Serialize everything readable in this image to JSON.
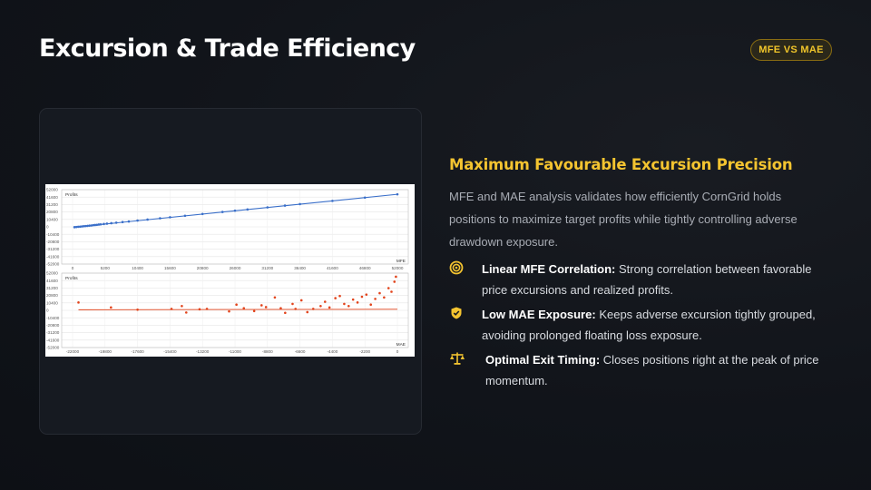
{
  "slide": {
    "title": "Excursion & Trade Efficiency",
    "badge": "MFE VS MAE"
  },
  "content": {
    "subtitle": "Maximum Favourable Excursion Precision",
    "description": "MFE and MAE analysis validates how efficiently CornGrid holds positions to maximize target profits while tightly controlling adverse drawdown exposure.",
    "bullets": [
      {
        "icon": "target-icon",
        "title": "Linear MFE Correlation:",
        "text": "Strong correlation between favorable price excursions and realized profits."
      },
      {
        "icon": "shield-icon",
        "title": "Low MAE Exposure:",
        "text": "Keeps adverse excursion tightly grouped, avoiding prolonged floating loss exposure."
      },
      {
        "icon": "scales-icon",
        "title": "Optimal Exit Timing:",
        "text": "Closes positions right at the peak of price momentum."
      }
    ]
  },
  "colors": {
    "accent": "#f4c430",
    "mfe_series": "#3a6fc9",
    "mae_series": "#e2441c"
  },
  "chart_data": [
    {
      "type": "scatter",
      "ylabel": "Profits",
      "xlabel": "MFE",
      "x_ticks": [
        "0",
        "5200",
        "10400",
        "15600",
        "20800",
        "26000",
        "31200",
        "36400",
        "41600",
        "46800",
        "52000"
      ],
      "y_ticks": [
        "52000",
        "41600",
        "31200",
        "20800",
        "10400",
        "0",
        "-10400",
        "-20800",
        "-31200",
        "-41600",
        "-52000"
      ],
      "xlim": [
        0,
        52000
      ],
      "ylim": [
        -52000,
        52000
      ],
      "grid": true,
      "series": [
        {
          "x": [
            300,
            600,
            900,
            1200,
            1500,
            1800,
            2100,
            2400,
            2700,
            3000,
            3300,
            3600,
            3900,
            4200,
            4500,
            5000,
            5500,
            6200,
            7000,
            8000,
            9000,
            10400,
            12000,
            14000,
            15600,
            18000,
            20800,
            24000,
            26000,
            28000,
            31200,
            34000,
            36400,
            41600,
            46800,
            52000
          ],
          "y": [
            -400,
            -200,
            100,
            300,
            600,
            900,
            1100,
            1400,
            1700,
            1900,
            2300,
            2600,
            2800,
            3200,
            3500,
            4000,
            4500,
            5100,
            5800,
            6700,
            7500,
            8800,
            10200,
            12000,
            13400,
            15500,
            18000,
            20800,
            22600,
            24300,
            27200,
            29700,
            31800,
            36300,
            40900,
            45500
          ]
        }
      ]
    },
    {
      "type": "scatter",
      "ylabel": "Profits",
      "xlabel": "MAE",
      "x_ticks": [
        "-22000",
        "-19800",
        "-17600",
        "-15400",
        "-13200",
        "-11000",
        "-8800",
        "-6600",
        "-4400",
        "-2200",
        "0"
      ],
      "y_ticks": [
        "52000",
        "41600",
        "31200",
        "20800",
        "10400",
        "0",
        "-10400",
        "-20800",
        "-31200",
        "-41600",
        "-52000"
      ],
      "xlim": [
        -22000,
        0
      ],
      "ylim": [
        -52000,
        52000
      ],
      "grid": true,
      "series": [
        {
          "x": [
            -21600,
            -19400,
            -17600,
            -15300,
            -14600,
            -14300,
            -13400,
            -12900,
            -11400,
            -10900,
            -10400,
            -9700,
            -9200,
            -8900,
            -8300,
            -7900,
            -7600,
            -7100,
            -6900,
            -6500,
            -6100,
            -5700,
            -5200,
            -4900,
            -4600,
            -4200,
            -3900,
            -3600,
            -3300,
            -3000,
            -2700,
            -2400,
            -2100,
            -1800,
            -1500,
            -1200,
            -900,
            -600,
            -400,
            -200,
            -100
          ],
          "y": [
            11000,
            4000,
            900,
            2000,
            6000,
            -3000,
            1500,
            2000,
            -1500,
            8000,
            3000,
            -1000,
            7000,
            4500,
            18000,
            3000,
            -3500,
            9000,
            2000,
            14000,
            -2500,
            2000,
            6000,
            12000,
            4000,
            17000,
            20000,
            9000,
            6000,
            15000,
            11000,
            19000,
            22000,
            8000,
            16000,
            24000,
            18000,
            31000,
            26000,
            40000,
            47000
          ]
        }
      ]
    }
  ]
}
